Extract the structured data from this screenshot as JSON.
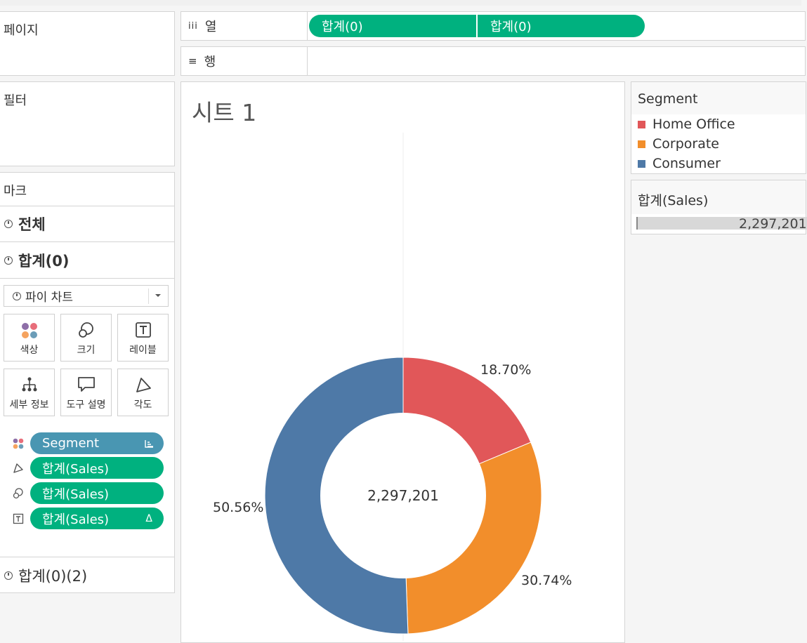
{
  "shelves": {
    "pages_label": "페이지",
    "filters_label": "필터",
    "columns_label": "열",
    "rows_label": "행",
    "column_pills": [
      "합계(0)",
      "합계(0)"
    ]
  },
  "marks": {
    "title": "마크",
    "all_label": "전체",
    "layer1_label": "합계(0)",
    "layer2_label": "합계(0)(2)",
    "mark_type": "파이 차트",
    "cards": {
      "color": "색상",
      "size": "크기",
      "label": "레이블",
      "detail": "세부 정보",
      "tooltip": "도구 설명",
      "angle": "각도"
    },
    "fields": [
      {
        "label": "Segment",
        "color": "#4996b2"
      },
      {
        "label": "합계(Sales)",
        "color": "#00b17f"
      },
      {
        "label": "합계(Sales)",
        "color": "#00b17f"
      },
      {
        "label": "합계(Sales)",
        "color": "#00b17f"
      }
    ],
    "delta_glyph": "Δ"
  },
  "sheet": {
    "title": "시트 1",
    "center_total": "2,297,201"
  },
  "legend": {
    "title": "Segment",
    "items": [
      {
        "label": "Home Office",
        "color": "#e15759"
      },
      {
        "label": "Corporate",
        "color": "#f28e2b"
      },
      {
        "label": "Consumer",
        "color": "#4e79a7"
      }
    ]
  },
  "size_legend": {
    "title": "합계(Sales)",
    "value": "2,297,201"
  },
  "chart_data": {
    "type": "pie",
    "categories": [
      "Home Office",
      "Corporate",
      "Consumer"
    ],
    "values": [
      18.7,
      30.74,
      50.56
    ],
    "value_labels": [
      "18.70%",
      "30.74%",
      "50.56%"
    ],
    "colors": [
      "#e15759",
      "#f28e2b",
      "#4e79a7"
    ],
    "center_label": "2,297,201",
    "donut": true
  }
}
